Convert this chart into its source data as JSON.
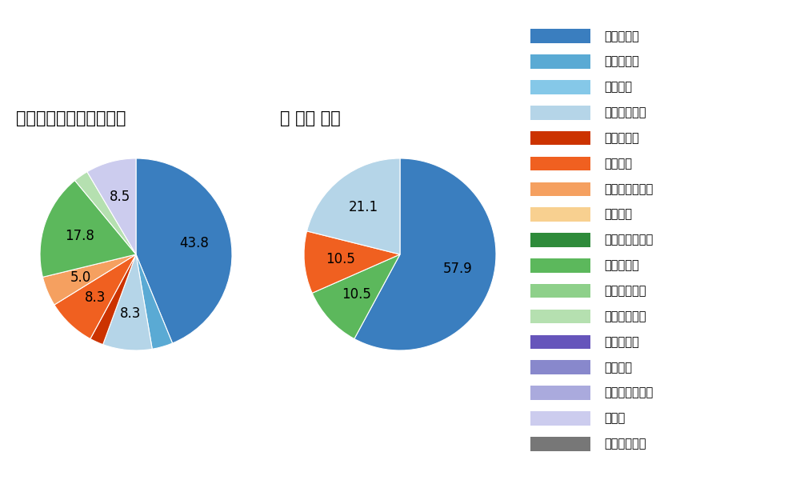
{
  "legend_items": [
    {
      "label": "ストレート",
      "color": "#3a7ebf"
    },
    {
      "label": "ツーシーム",
      "color": "#5aaad4"
    },
    {
      "label": "シュート",
      "color": "#85c8e8"
    },
    {
      "label": "カットボール",
      "color": "#b5d5e8"
    },
    {
      "label": "スプリット",
      "color": "#cc3300"
    },
    {
      "label": "フォーク",
      "color": "#f06020"
    },
    {
      "label": "チェンジアップ",
      "color": "#f5a060"
    },
    {
      "label": "シンカー",
      "color": "#f8d090"
    },
    {
      "label": "高速スライダー",
      "color": "#2e8b3a"
    },
    {
      "label": "スライダー",
      "color": "#5cb85c"
    },
    {
      "label": "縦スライダー",
      "color": "#8ed08a"
    },
    {
      "label": "パワーカーブ",
      "color": "#b5e0b0"
    },
    {
      "label": "スクリュー",
      "color": "#6655bb"
    },
    {
      "label": "ナックル",
      "color": "#8888cc"
    },
    {
      "label": "ナックルカーブ",
      "color": "#aaaadd"
    },
    {
      "label": "カーブ",
      "color": "#ccccee"
    },
    {
      "label": "スローカーブ",
      "color": "#777777"
    }
  ],
  "left_title": "パ・リーグ全プレイヤー",
  "right_title": "宗 佑磨 選手",
  "left_slices": [
    {
      "label": "ストレート",
      "value": 43.8,
      "color": "#3a7ebf"
    },
    {
      "label": "ツーシーム",
      "value": 3.5,
      "color": "#5aaad4"
    },
    {
      "label": "カットボール",
      "value": 8.3,
      "color": "#b5d5e8"
    },
    {
      "label": "スプリット",
      "value": 2.3,
      "color": "#cc3300"
    },
    {
      "label": "フォーク",
      "value": 8.3,
      "color": "#f06020"
    },
    {
      "label": "チェンジアップ",
      "value": 5.0,
      "color": "#f5a060"
    },
    {
      "label": "スライダー",
      "value": 17.8,
      "color": "#5cb85c"
    },
    {
      "label": "パワーカーブ",
      "value": 2.5,
      "color": "#b5e0b0"
    },
    {
      "label": "カーブ",
      "value": 8.5,
      "color": "#ccccee"
    }
  ],
  "right_slices": [
    {
      "label": "ストレート",
      "value": 57.9,
      "color": "#3a7ebf"
    },
    {
      "label": "スライダー",
      "value": 10.5,
      "color": "#5cb85c"
    },
    {
      "label": "フォーク",
      "value": 10.5,
      "color": "#f06020"
    },
    {
      "label": "カットボール",
      "value": 21.1,
      "color": "#b5d5e8"
    }
  ],
  "bg_color": "#ffffff",
  "label_fontsize": 12,
  "title_fontsize": 15
}
